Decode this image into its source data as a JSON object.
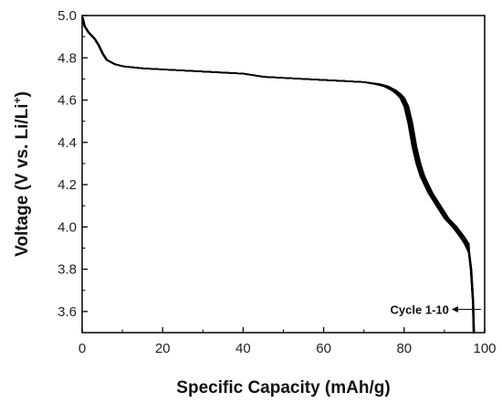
{
  "chart_data": {
    "type": "line",
    "xlabel": "Specific Capacity (mAh/g)",
    "ylabel_main": "Voltage (V vs. Li/Li",
    "ylabel_sup": "+",
    "ylabel_close": ")",
    "xlim": [
      0,
      100
    ],
    "ylim": [
      3.5,
      5.0
    ],
    "xticks": [
      0,
      20,
      40,
      60,
      80,
      100
    ],
    "yticks": [
      3.6,
      3.8,
      4.0,
      4.2,
      4.4,
      4.6,
      4.8,
      5.0
    ],
    "xtick_labels": [
      "0",
      "20",
      "40",
      "60",
      "80",
      "100"
    ],
    "ytick_labels": [
      "3.6",
      "3.8",
      "4.0",
      "4.2",
      "4.4",
      "4.6",
      "4.8",
      "5.0"
    ],
    "grid": false,
    "series": [
      {
        "x": [
          0,
          0.5,
          1.5,
          3,
          4,
          5,
          6,
          8,
          10,
          15,
          20,
          30,
          40,
          45,
          50,
          60,
          65,
          70,
          73,
          75,
          76,
          77,
          78,
          79,
          80,
          81,
          82,
          83,
          84,
          85,
          86,
          88,
          90,
          92,
          94,
          95,
          96,
          96.5,
          97,
          97.2
        ],
        "y": [
          4.99,
          4.95,
          4.92,
          4.89,
          4.86,
          4.82,
          4.79,
          4.77,
          4.76,
          4.75,
          4.745,
          4.735,
          4.725,
          4.71,
          4.705,
          4.695,
          4.69,
          4.685,
          4.675,
          4.665,
          4.655,
          4.645,
          4.63,
          4.61,
          4.57,
          4.49,
          4.38,
          4.3,
          4.24,
          4.2,
          4.16,
          4.1,
          4.04,
          4.0,
          3.95,
          3.92,
          3.88,
          3.8,
          3.65,
          3.5
        ]
      }
    ],
    "annotation": "Cycle 1-10",
    "annotation_point": [
      96.8,
      3.61
    ]
  }
}
